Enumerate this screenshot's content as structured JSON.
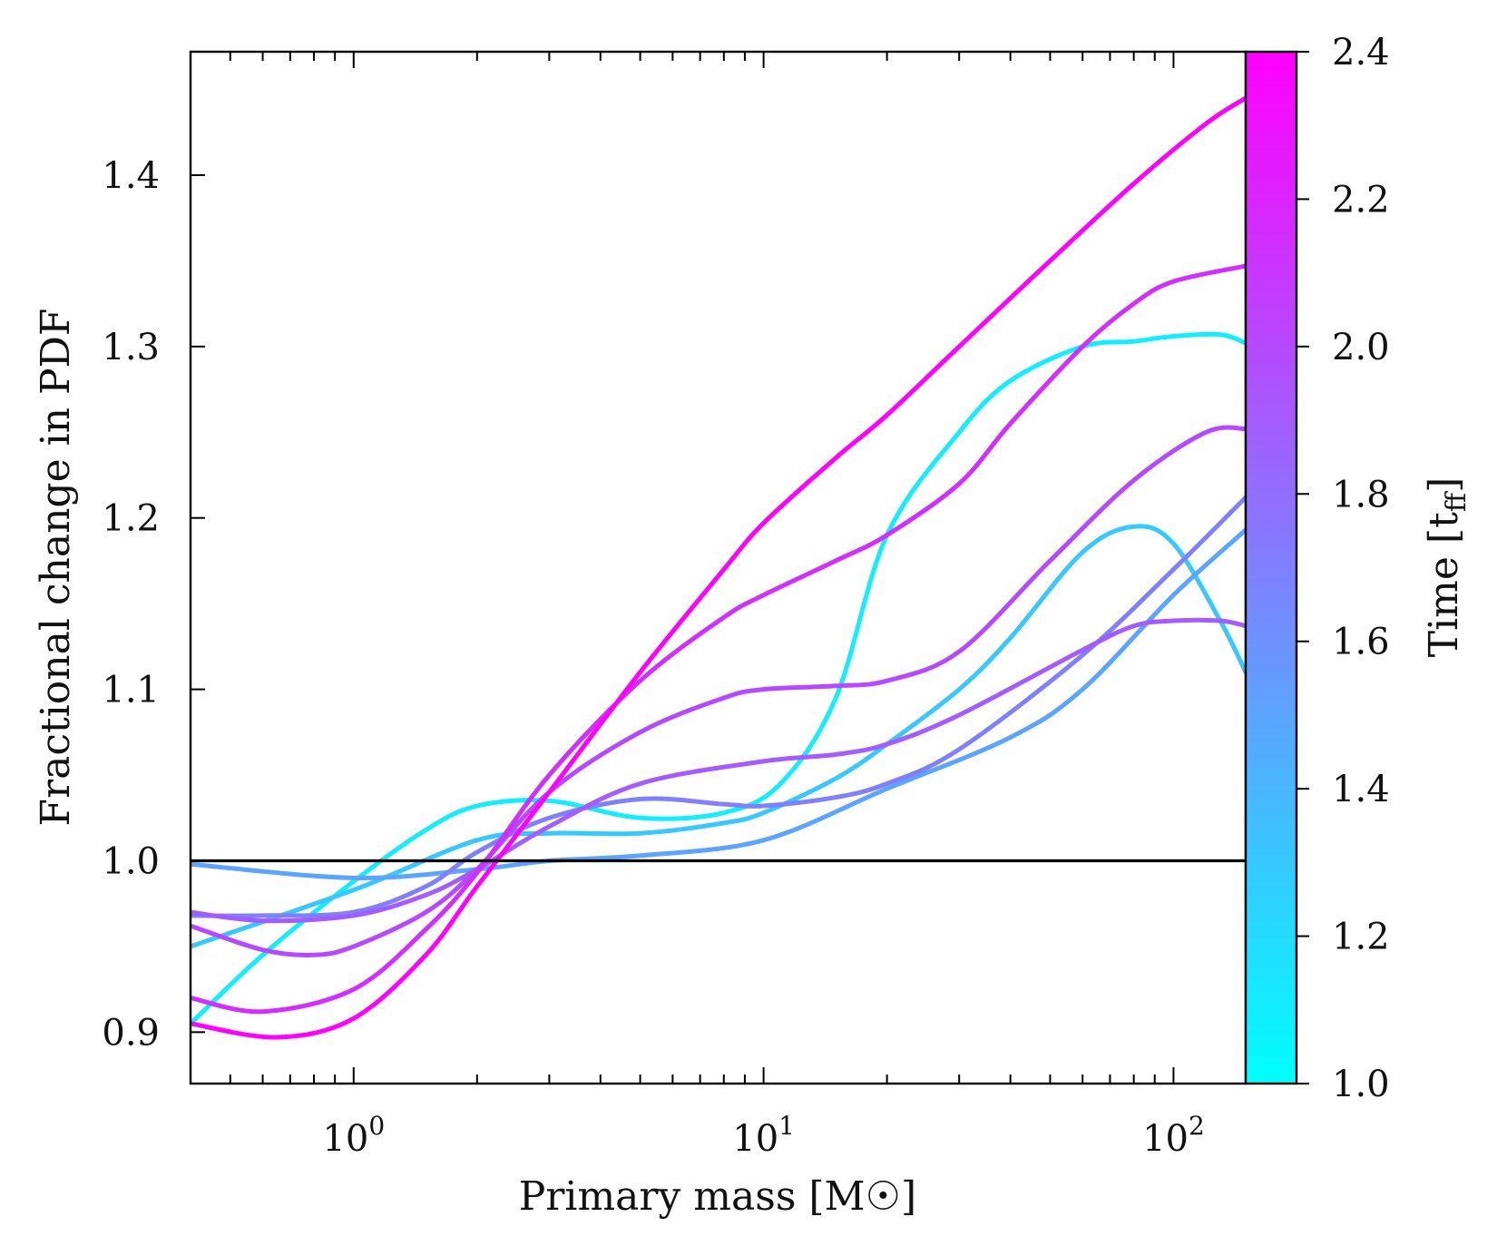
{
  "chart_data": {
    "type": "line",
    "title": "",
    "xlabel": "Primary mass [M☉]",
    "ylabel": "Fractional change in PDF",
    "xscale": "log",
    "xlim": [
      0.4,
      150
    ],
    "ylim": [
      0.87,
      1.472
    ],
    "x_ticks": [
      {
        "value": 1,
        "base": "10",
        "exp": "0"
      },
      {
        "value": 10,
        "base": "10",
        "exp": "1"
      },
      {
        "value": 100,
        "base": "10",
        "exp": "2"
      }
    ],
    "y_ticks": [
      0.9,
      1.0,
      1.1,
      1.2,
      1.3,
      1.4
    ],
    "y_tick_labels": [
      "0.9",
      "1.0",
      "1.1",
      "1.2",
      "1.3",
      "1.4"
    ],
    "reference_line": 1.0,
    "colorbar": {
      "label": "Time [t_ff]",
      "label_main": "Time [t",
      "label_sub": "ff",
      "label_end": "]",
      "range": [
        1.0,
        2.4
      ],
      "ticks": [
        1.0,
        1.2,
        1.4,
        1.6,
        1.8,
        2.0,
        2.2,
        2.4
      ],
      "tick_labels": [
        "1.0",
        "1.2",
        "1.4",
        "1.6",
        "1.8",
        "2.0",
        "2.2",
        "2.4"
      ],
      "color_low": "#00ffff",
      "color_high": "#ff00ff"
    },
    "series": [
      {
        "name": "t=1.1",
        "time": 1.1,
        "x": [
          0.4,
          0.6,
          1.0,
          1.5,
          2.0,
          3.0,
          5.0,
          8.0,
          11.0,
          15.0,
          20.0,
          30.0,
          40.0,
          60.0,
          80.0,
          100.0,
          130.0,
          150.0
        ],
        "y": [
          0.905,
          0.945,
          0.988,
          1.018,
          1.032,
          1.035,
          1.025,
          1.028,
          1.045,
          1.095,
          1.19,
          1.25,
          1.28,
          1.3,
          1.303,
          1.306,
          1.307,
          1.302
        ]
      },
      {
        "name": "t=1.3",
        "time": 1.3,
        "x": [
          0.4,
          1.0,
          2.0,
          3.0,
          5.0,
          8.0,
          10.0,
          15.0,
          20.0,
          30.0,
          40.0,
          60.0,
          80.0,
          100.0,
          130.0,
          150.0
        ],
        "y": [
          0.95,
          0.983,
          1.012,
          1.016,
          1.016,
          1.022,
          1.028,
          1.048,
          1.068,
          1.1,
          1.13,
          1.18,
          1.195,
          1.185,
          1.14,
          1.11
        ]
      },
      {
        "name": "t=1.5",
        "time": 1.5,
        "x": [
          0.4,
          1.0,
          2.0,
          3.0,
          5.0,
          10.0,
          20.0,
          40.0,
          60.0,
          100.0,
          150.0
        ],
        "y": [
          0.998,
          0.99,
          0.995,
          1.0,
          1.003,
          1.012,
          1.042,
          1.072,
          1.1,
          1.155,
          1.193
        ]
      },
      {
        "name": "t=1.7",
        "time": 1.7,
        "x": [
          0.4,
          0.6,
          1.0,
          1.5,
          2.0,
          3.0,
          5.0,
          8.0,
          10.0,
          15.0,
          20.0,
          30.0,
          60.0,
          100.0,
          150.0
        ],
        "y": [
          0.968,
          0.968,
          0.97,
          0.985,
          1.005,
          1.025,
          1.036,
          1.033,
          1.032,
          1.037,
          1.045,
          1.065,
          1.12,
          1.17,
          1.212
        ]
      },
      {
        "name": "t=1.9",
        "time": 1.9,
        "x": [
          0.4,
          0.6,
          1.0,
          1.5,
          2.0,
          3.0,
          5.0,
          10.0,
          15.0,
          20.0,
          30.0,
          60.0,
          80.0,
          100.0,
          130.0,
          150.0
        ],
        "y": [
          0.97,
          0.965,
          0.968,
          0.98,
          0.995,
          1.02,
          1.045,
          1.058,
          1.062,
          1.068,
          1.085,
          1.123,
          1.137,
          1.14,
          1.14,
          1.137
        ]
      },
      {
        "name": "t=2.0",
        "time": 2.0,
        "x": [
          0.4,
          0.6,
          0.8,
          1.0,
          1.5,
          2.0,
          3.0,
          5.0,
          8.0,
          10.0,
          15.0,
          20.0,
          30.0,
          50.0,
          80.0,
          120.0,
          150.0
        ],
        "y": [
          0.962,
          0.948,
          0.945,
          0.95,
          0.97,
          0.995,
          1.04,
          1.075,
          1.095,
          1.1,
          1.102,
          1.105,
          1.122,
          1.175,
          1.222,
          1.25,
          1.252
        ]
      },
      {
        "name": "t=2.15",
        "time": 2.15,
        "x": [
          0.4,
          0.6,
          1.0,
          1.5,
          2.0,
          3.0,
          5.0,
          8.0,
          10.0,
          15.0,
          20.0,
          30.0,
          40.0,
          60.0,
          80.0,
          100.0,
          150.0
        ],
        "y": [
          0.92,
          0.912,
          0.925,
          0.96,
          0.993,
          1.05,
          1.105,
          1.142,
          1.155,
          1.175,
          1.19,
          1.22,
          1.255,
          1.3,
          1.325,
          1.338,
          1.347
        ]
      },
      {
        "name": "t=2.4",
        "time": 2.4,
        "x": [
          0.4,
          0.65,
          1.0,
          1.5,
          2.0,
          3.0,
          5.0,
          8.0,
          10.0,
          15.0,
          20.0,
          30.0,
          50.0,
          80.0,
          120.0,
          150.0
        ],
        "y": [
          0.905,
          0.897,
          0.908,
          0.945,
          0.985,
          1.04,
          1.11,
          1.17,
          1.197,
          1.235,
          1.26,
          1.3,
          1.35,
          1.395,
          1.43,
          1.445
        ]
      }
    ]
  }
}
